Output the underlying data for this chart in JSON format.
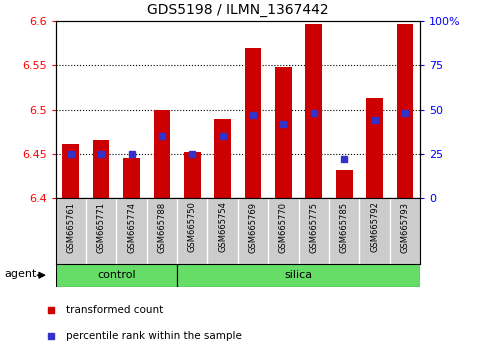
{
  "title": "GDS5198 / ILMN_1367442",
  "samples": [
    "GSM665761",
    "GSM665771",
    "GSM665774",
    "GSM665788",
    "GSM665750",
    "GSM665754",
    "GSM665769",
    "GSM665770",
    "GSM665775",
    "GSM665785",
    "GSM665792",
    "GSM665793"
  ],
  "transformed_counts": [
    6.461,
    6.466,
    6.446,
    6.5,
    6.452,
    6.49,
    6.57,
    6.548,
    6.597,
    6.432,
    6.513,
    6.597
  ],
  "percentile_ranks_pct": [
    25,
    25,
    25,
    35,
    25,
    35,
    47,
    42,
    48,
    22,
    44,
    48
  ],
  "ylim_left": [
    6.4,
    6.6
  ],
  "ylim_right": [
    0,
    100
  ],
  "y_ticks_left": [
    6.4,
    6.45,
    6.5,
    6.55,
    6.6
  ],
  "y_ticks_right": [
    0,
    25,
    50,
    75,
    100
  ],
  "y_tick_labels_left": [
    "6.4",
    "6.45",
    "6.5",
    "6.55",
    "6.6"
  ],
  "y_tick_labels_right": [
    "0",
    "25",
    "50",
    "75",
    "100%"
  ],
  "bar_color": "#cc0000",
  "dot_color": "#3333cc",
  "baseline": 6.4,
  "control_count": 4,
  "silica_count": 8,
  "group_color": "#66dd66",
  "label_bg_color": "#cccccc",
  "label_divider_color": "#ffffff",
  "background_color": "#ffffff",
  "bar_width": 0.55,
  "dot_size": 4
}
